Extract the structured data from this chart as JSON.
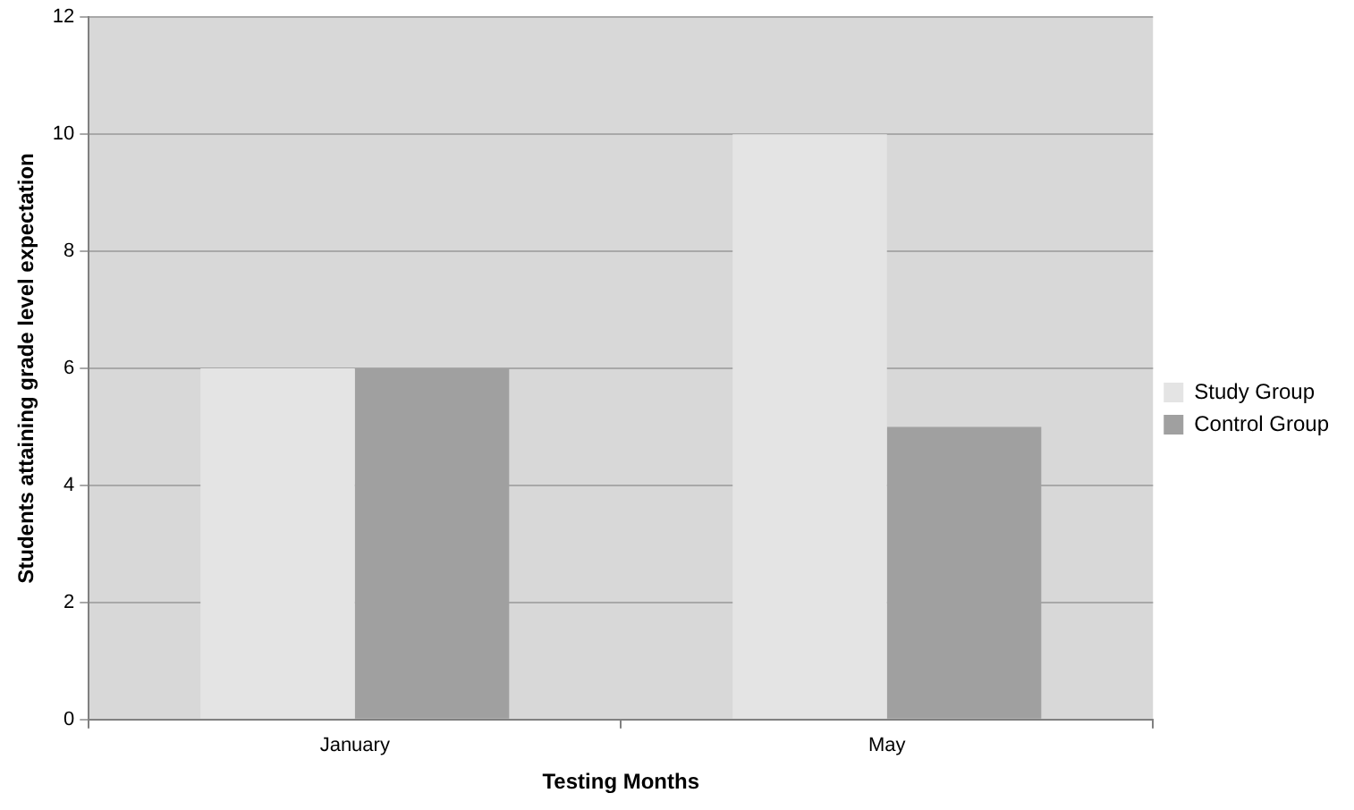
{
  "chart_data": {
    "type": "bar",
    "xlabel": "Testing Months",
    "ylabel": "Students attaining grade level expectation",
    "categories": [
      "January",
      "May"
    ],
    "series": [
      {
        "name": "Study Group",
        "color": "#e4e4e4",
        "values": [
          6,
          10
        ]
      },
      {
        "name": "Control Group",
        "color": "#a0a0a0",
        "values": [
          6,
          5
        ]
      }
    ],
    "ylim": [
      0,
      12
    ],
    "yticks": [
      0,
      2,
      4,
      6,
      8,
      10,
      12
    ],
    "grid": "y",
    "legend": "right"
  }
}
